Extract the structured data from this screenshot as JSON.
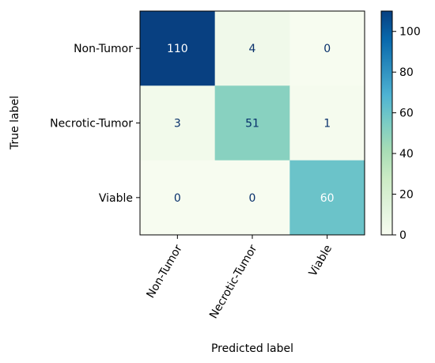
{
  "chart_data": {
    "type": "heatmap",
    "title": "",
    "xlabel": "Predicted label",
    "ylabel": "True label",
    "x_categories": [
      "Non-Tumor",
      "Necrotic-Tumor",
      "Viable"
    ],
    "y_categories": [
      "Non-Tumor",
      "Necrotic-Tumor",
      "Viable"
    ],
    "matrix": [
      [
        110,
        4,
        0
      ],
      [
        3,
        51,
        1
      ],
      [
        0,
        0,
        60
      ]
    ],
    "colormap": "GnBu",
    "colorbar": {
      "min": 0,
      "max": 110,
      "ticks": [
        0,
        20,
        40,
        60,
        80,
        100
      ],
      "tick_labels": [
        "0",
        "20",
        "40",
        "60",
        "80",
        "100"
      ]
    },
    "colors": {
      "text_dark_cell": "#ffffff",
      "text_light_cell": "#08306b",
      "axis": "#000000"
    }
  }
}
